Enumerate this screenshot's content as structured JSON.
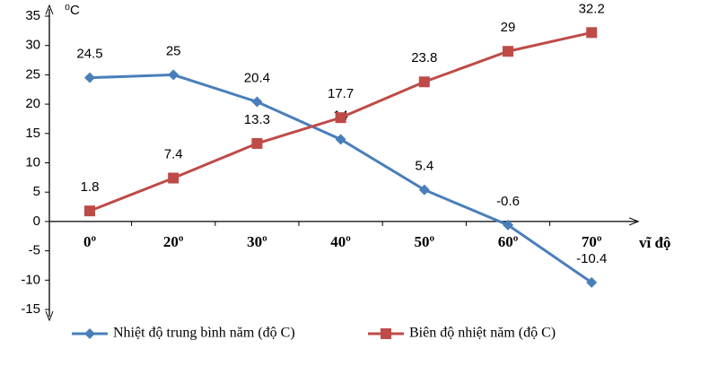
{
  "chart_data": {
    "type": "line",
    "y_label": "⁰C",
    "x_label": "vĩ độ",
    "categories": [
      "0º",
      "20º",
      "30º",
      "40º",
      "50º",
      "60º",
      "70º"
    ],
    "series": [
      {
        "name": "Nhiệt độ trung bình năm (độ C)",
        "color": "#4a7ebb",
        "marker": "diamond",
        "values": [
          24.5,
          25,
          20.4,
          14,
          5.4,
          -0.6,
          -10.4
        ]
      },
      {
        "name": "Biên độ nhiệt năm (độ C)",
        "color": "#be4b48",
        "marker": "square",
        "values": [
          1.8,
          7.4,
          13.3,
          17.7,
          23.8,
          29,
          32.2
        ]
      }
    ],
    "ylim": [
      -15,
      35
    ],
    "yticks": [
      -15,
      -10,
      -5,
      0,
      5,
      10,
      15,
      20,
      25,
      30,
      35
    ],
    "grid": false
  }
}
